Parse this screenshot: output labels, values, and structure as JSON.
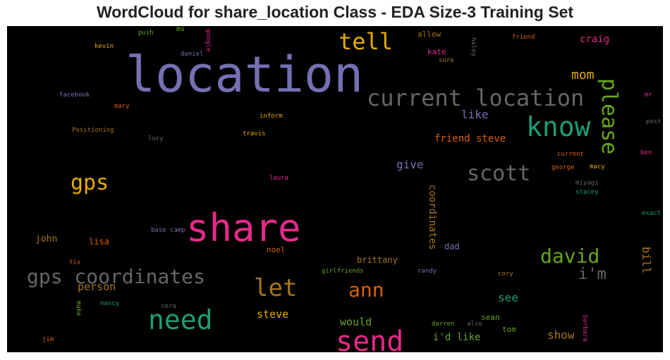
{
  "title": "WordCloud for share_location Class - EDA Size-3 Training Set",
  "colors": {
    "background": "#000000",
    "title_text": "#222222"
  },
  "words": [
    {
      "text": "location",
      "color": "#7570b3",
      "size": 70
    },
    {
      "text": "share",
      "color": "#e7298a",
      "size": 54
    },
    {
      "text": "current location",
      "color": "#666666",
      "size": 32
    },
    {
      "text": "know",
      "color": "#1b9e77",
      "size": 38
    },
    {
      "text": "please",
      "color": "#66a61e",
      "size": 30
    },
    {
      "text": "tell",
      "color": "#e6ab02",
      "size": 32
    },
    {
      "text": "gps",
      "color": "#e6ab02",
      "size": 30
    },
    {
      "text": "scott",
      "color": "#666666",
      "size": 30
    },
    {
      "text": "need",
      "color": "#1b9e77",
      "size": 38
    },
    {
      "text": "send",
      "color": "#e7298a",
      "size": 40
    },
    {
      "text": "gps coordinates",
      "color": "#666666",
      "size": 28
    },
    {
      "text": "let",
      "color": "#a6761d",
      "size": 34
    },
    {
      "text": "ann",
      "color": "#d95f02",
      "size": 28
    },
    {
      "text": "david",
      "color": "#66a61e",
      "size": 28
    },
    {
      "text": "i'm",
      "color": "#666666",
      "size": 22
    },
    {
      "text": "mom",
      "color": "#e6ab02",
      "size": 18
    },
    {
      "text": "like",
      "color": "#7570b3",
      "size": 16
    },
    {
      "text": "friend steve",
      "color": "#d95f02",
      "size": 14
    },
    {
      "text": "give",
      "color": "#7570b3",
      "size": 16
    },
    {
      "text": "craig",
      "color": "#e7298a",
      "size": 14
    },
    {
      "text": "coordinates",
      "color": "#a6761d",
      "size": 14
    },
    {
      "text": "bill",
      "color": "#a6761d",
      "size": 16
    },
    {
      "text": "person",
      "color": "#a6761d",
      "size": 15
    },
    {
      "text": "steve",
      "color": "#e6ab02",
      "size": 15
    },
    {
      "text": "would",
      "color": "#66a61e",
      "size": 15
    },
    {
      "text": "i'd like",
      "color": "#66a61e",
      "size": 14
    },
    {
      "text": "see",
      "color": "#1b9e77",
      "size": 16
    },
    {
      "text": "show",
      "color": "#a6761d",
      "size": 16
    },
    {
      "text": "brittany",
      "color": "#a6761d",
      "size": 12
    },
    {
      "text": "dad",
      "color": "#7570b3",
      "size": 12
    },
    {
      "text": "sean",
      "color": "#66a61e",
      "size": 11
    },
    {
      "text": "tom",
      "color": "#66a61e",
      "size": 11
    },
    {
      "text": "john",
      "color": "#a6761d",
      "size": 13
    },
    {
      "text": "lisa",
      "color": "#d95f02",
      "size": 12
    },
    {
      "text": "noel",
      "color": "#d95f02",
      "size": 11
    },
    {
      "text": "allow",
      "color": "#a6761d",
      "size": 11
    },
    {
      "text": "kate",
      "color": "#e7298a",
      "size": 11
    },
    {
      "text": "sure",
      "color": "#a6761d",
      "size": 9
    },
    {
      "text": "haley",
      "color": "#666666",
      "size": 9
    },
    {
      "text": "friend",
      "color": "#d95f02",
      "size": 9
    },
    {
      "text": "push",
      "color": "#66a61e",
      "size": 9
    },
    {
      "text": "ms",
      "color": "#66a61e",
      "size": 10
    },
    {
      "text": "google",
      "color": "#e7298a",
      "size": 9
    },
    {
      "text": "kevin",
      "color": "#e6ab02",
      "size": 9
    },
    {
      "text": "daniel",
      "color": "#7570b3",
      "size": 9
    },
    {
      "text": "facebook",
      "color": "#7570b3",
      "size": 9
    },
    {
      "text": "mary",
      "color": "#d95f02",
      "size": 9
    },
    {
      "text": "inform",
      "color": "#e6ab02",
      "size": 9
    },
    {
      "text": "Positioning",
      "color": "#a6761d",
      "size": 9
    },
    {
      "text": "lucy",
      "color": "#666666",
      "size": 9
    },
    {
      "text": "travis",
      "color": "#e6ab02",
      "size": 9
    },
    {
      "text": "laura",
      "color": "#e7298a",
      "size": 9
    },
    {
      "text": "base camp",
      "color": "#7570b3",
      "size": 9
    },
    {
      "text": "fix",
      "color": "#d95f02",
      "size": 9
    },
    {
      "text": "girlfriends",
      "color": "#66a61e",
      "size": 9
    },
    {
      "text": "randy",
      "color": "#7570b3",
      "size": 9
    },
    {
      "text": "cory",
      "color": "#a6761d",
      "size": 9
    },
    {
      "text": "make",
      "color": "#66a61e",
      "size": 9
    },
    {
      "text": "nancy",
      "color": "#1b9e77",
      "size": 9
    },
    {
      "text": "cora",
      "color": "#666666",
      "size": 9
    },
    {
      "text": "darren",
      "color": "#66a61e",
      "size": 9
    },
    {
      "text": "also",
      "color": "#666666",
      "size": 9
    },
    {
      "text": "jim",
      "color": "#d95f02",
      "size": 9
    },
    {
      "text": "barbara",
      "color": "#e7298a",
      "size": 9
    },
    {
      "text": "mr",
      "color": "#e7298a",
      "size": 9
    },
    {
      "text": "post",
      "color": "#666666",
      "size": 9
    },
    {
      "text": "current",
      "color": "#d95f02",
      "size": 9
    },
    {
      "text": "ben",
      "color": "#e7298a",
      "size": 9
    },
    {
      "text": "george",
      "color": "#d95f02",
      "size": 9
    },
    {
      "text": "macy",
      "color": "#e6ab02",
      "size": 9
    },
    {
      "text": "miyagi",
      "color": "#666666",
      "size": 9
    },
    {
      "text": "stacey",
      "color": "#1b9e77",
      "size": 9
    },
    {
      "text": "exact",
      "color": "#1b9e77",
      "size": 9
    }
  ]
}
